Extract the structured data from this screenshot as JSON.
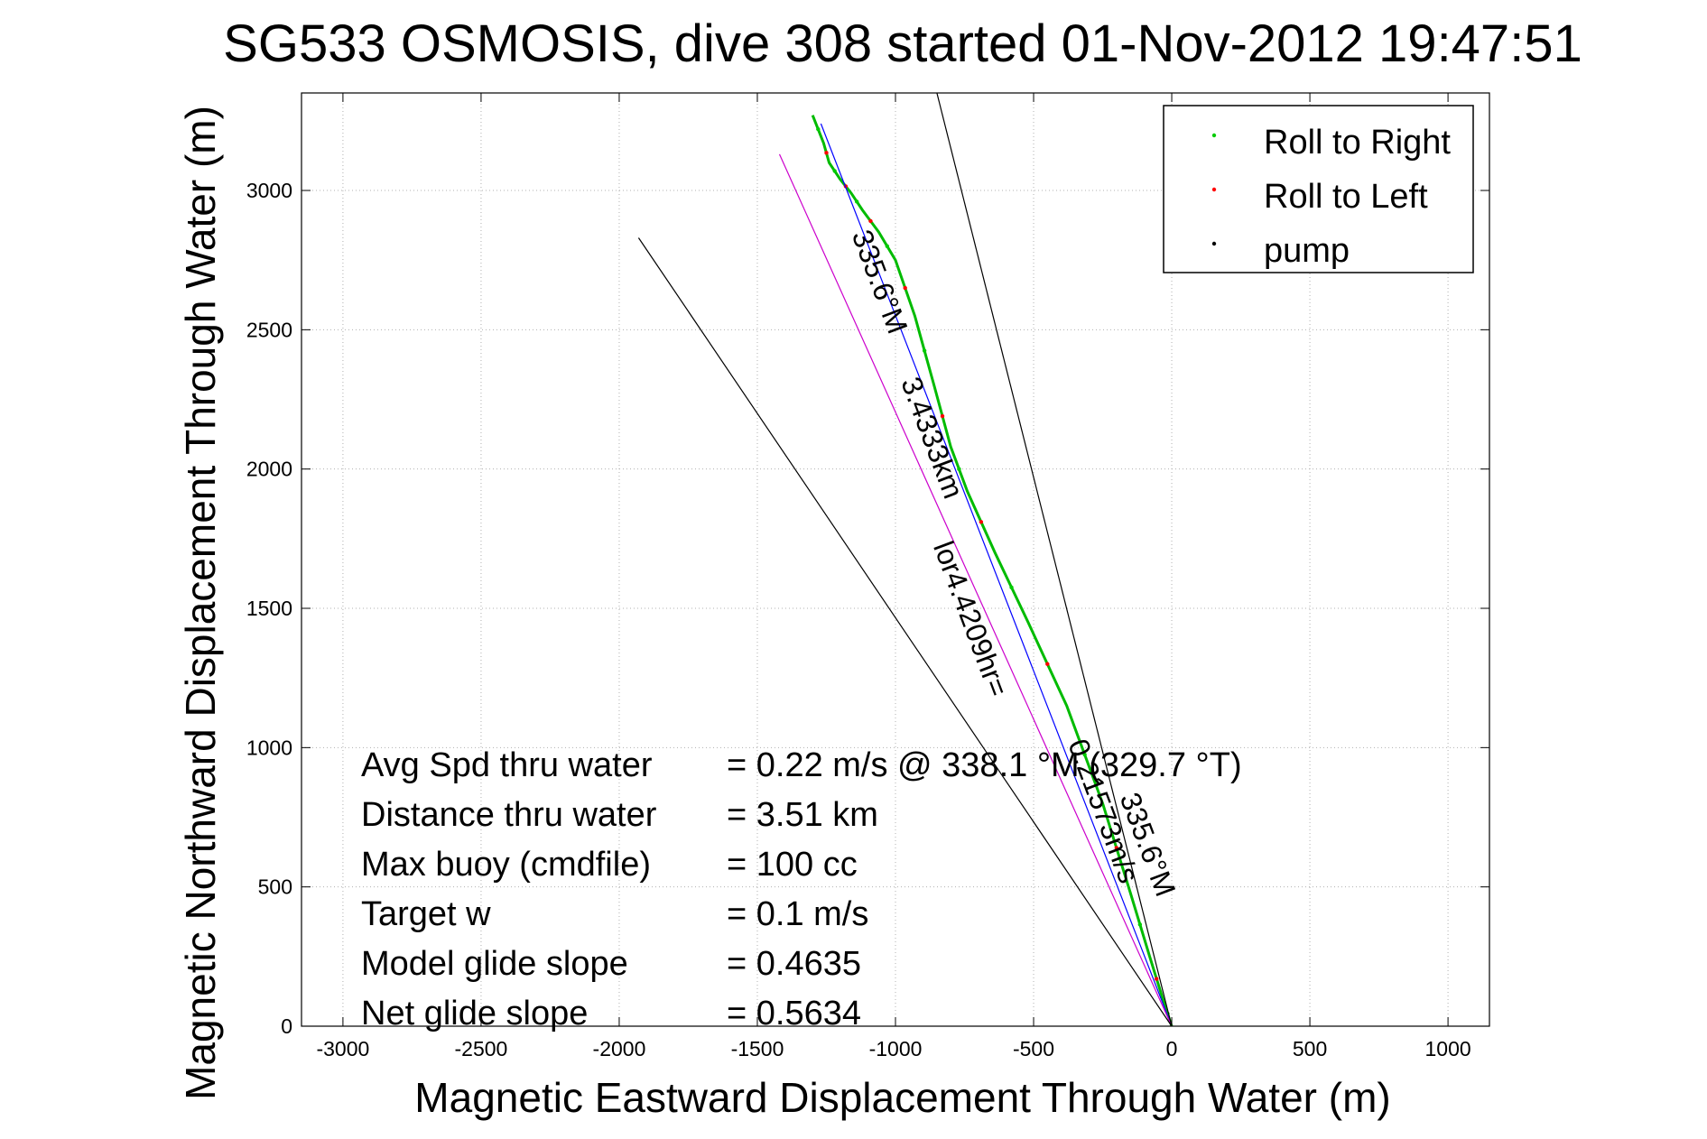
{
  "chart_data": {
    "type": "line",
    "title": "SG533 OSMOSIS, dive 308 started 01-Nov-2012 19:47:51",
    "xlabel": "Magnetic Eastward Displacement Through Water (m)",
    "ylabel": "Magnetic Northward Displacement Through Water (m)",
    "xlim": [
      -3150,
      1150
    ],
    "ylim": [
      0,
      3350
    ],
    "xticks": [
      -3000,
      -2500,
      -2000,
      -1500,
      -1000,
      -500,
      0,
      500,
      1000
    ],
    "yticks": [
      0,
      500,
      1000,
      1500,
      2000,
      2500,
      3000
    ],
    "grid": true,
    "legend": {
      "placement": "top-right",
      "entries": [
        {
          "label": "Roll to Right",
          "color": "#00cc00"
        },
        {
          "label": "Roll to Left",
          "color": "#ff0000"
        },
        {
          "label": "pump",
          "color": "#000000"
        }
      ]
    },
    "series": [
      {
        "color": "#00bb00",
        "x": [
          0,
          -30,
          -80,
          -150,
          -250,
          -380,
          -520,
          -640,
          -740,
          -800,
          -860,
          -930,
          -1000,
          -1060,
          -1120,
          -1160,
          -1200,
          -1240,
          -1260,
          -1300
        ],
        "y": [
          0,
          90,
          250,
          480,
          800,
          1150,
          1450,
          1700,
          1920,
          2080,
          2300,
          2550,
          2750,
          2850,
          2930,
          2990,
          3040,
          3100,
          3170,
          3270
        ]
      },
      {
        "color": "#0000ff",
        "x": [
          0,
          -1270
        ],
        "y": [
          0,
          3240
        ]
      },
      {
        "color": "#cc00cc",
        "x": [
          0,
          -1420
        ],
        "y": [
          0,
          3130
        ]
      },
      {
        "color": "#000000",
        "x": [
          0,
          -1930
        ],
        "y": [
          0,
          2830
        ]
      },
      {
        "color": "#000000",
        "x": [
          0,
          -850
        ],
        "y": [
          0,
          3350
        ]
      }
    ],
    "line_labels": [
      {
        "text": "335.6°M",
        "x": -1090,
        "y": 2660,
        "angle": 69.4
      },
      {
        "text": "3.4333km",
        "x": -900,
        "y": 2100,
        "angle": 69.4
      },
      {
        "text": "lor4.4209hr=",
        "x": -760,
        "y": 1450,
        "angle": 69.4
      },
      {
        "text": "0.21573m/s",
        "x": -280,
        "y": 760,
        "angle": 69.4
      },
      {
        "text": "335.6°M",
        "x": -120,
        "y": 640,
        "angle": 69.4
      }
    ],
    "annotations": [
      {
        "label": "Avg Spd thru water",
        "value": "=  0.22 m/s @ 338.1 °M (329.7 °T)"
      },
      {
        "label": "Distance thru water",
        "value": "=  3.51 km"
      },
      {
        "label": "Max buoy (cmdfile)",
        "value": "= 100 cc"
      },
      {
        "label": "Target w",
        "value": "= 0.1 m/s"
      },
      {
        "label": "Model glide slope",
        "value": "= 0.4635"
      },
      {
        "label": "Net glide slope",
        "value": "= 0.5634"
      }
    ]
  }
}
